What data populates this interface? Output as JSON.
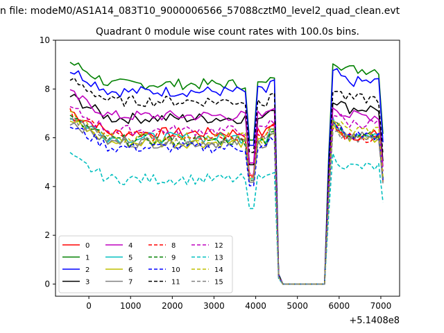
{
  "chart_data": {
    "type": "line",
    "suptitle": "n file: modeM0/AS1A14_083T10_9000006566_57088cztM0_level2_quad_clean.evt",
    "title": "Quadrant 0 module wise count rates with 100.0s bins.",
    "xlabel": "",
    "ylabel": "",
    "x_offset_label": "+5.1408e8",
    "xlim": [
      -800,
      7450
    ],
    "ylim": [
      -0.5,
      10.0
    ],
    "x_ticks": [
      0,
      1000,
      2000,
      3000,
      4000,
      5000,
      6000,
      7000
    ],
    "x_tick_labels": [
      "0",
      "1000",
      "2000",
      "3000",
      "4000",
      "5000",
      "6000",
      "7000"
    ],
    "y_ticks": [
      0,
      2,
      4,
      6,
      8,
      10
    ],
    "y_tick_labels": [
      "0",
      "2",
      "4",
      "6",
      "8",
      "10"
    ],
    "legend_position": "lower-left",
    "legend_columns": 4,
    "gap_start": 4600,
    "gap_end": 5700,
    "series": [
      {
        "name": "0",
        "color": "#ff0000",
        "dash": "solid",
        "level1": 6.2,
        "level2": 6.1
      },
      {
        "name": "1",
        "color": "#008000",
        "dash": "solid",
        "level1": 8.2,
        "level2": 8.8
      },
      {
        "name": "2",
        "color": "#0000ff",
        "dash": "solid",
        "level1": 7.9,
        "level2": 8.3
      },
      {
        "name": "3",
        "color": "#000000",
        "dash": "solid",
        "level1": 6.8,
        "level2": 7.2
      },
      {
        "name": "4",
        "color": "#bf00bf",
        "dash": "solid",
        "level1": 6.9,
        "level2": 6.9
      },
      {
        "name": "5",
        "color": "#00bfbf",
        "dash": "solid",
        "level1": 6.0,
        "level2": 6.2
      },
      {
        "name": "6",
        "color": "#bfbf00",
        "dash": "solid",
        "level1": 5.8,
        "level2": 6.0
      },
      {
        "name": "7",
        "color": "#808080",
        "dash": "solid",
        "level1": 5.8,
        "level2": 6.1
      },
      {
        "name": "8",
        "color": "#ff0000",
        "dash": "dashed",
        "level1": 6.1,
        "level2": 6.0
      },
      {
        "name": "9",
        "color": "#008000",
        "dash": "dashed",
        "level1": 5.9,
        "level2": 6.2
      },
      {
        "name": "10",
        "color": "#0000ff",
        "dash": "dashed",
        "level1": 5.6,
        "level2": 6.1
      },
      {
        "name": "11",
        "color": "#000000",
        "dash": "dashed",
        "level1": 7.5,
        "level2": 7.6
      },
      {
        "name": "12",
        "color": "#bf00bf",
        "dash": "dashed",
        "level1": 6.3,
        "level2": 6.6
      },
      {
        "name": "13",
        "color": "#00bfbf",
        "dash": "dashed",
        "level1": 4.3,
        "level2": 4.8
      },
      {
        "name": "14",
        "color": "#bfbf00",
        "dash": "dashed",
        "level1": 6.0,
        "level2": 6.3
      },
      {
        "name": "15",
        "color": "#808080",
        "dash": "dashed",
        "level1": 5.9,
        "level2": 5.9
      }
    ]
  }
}
